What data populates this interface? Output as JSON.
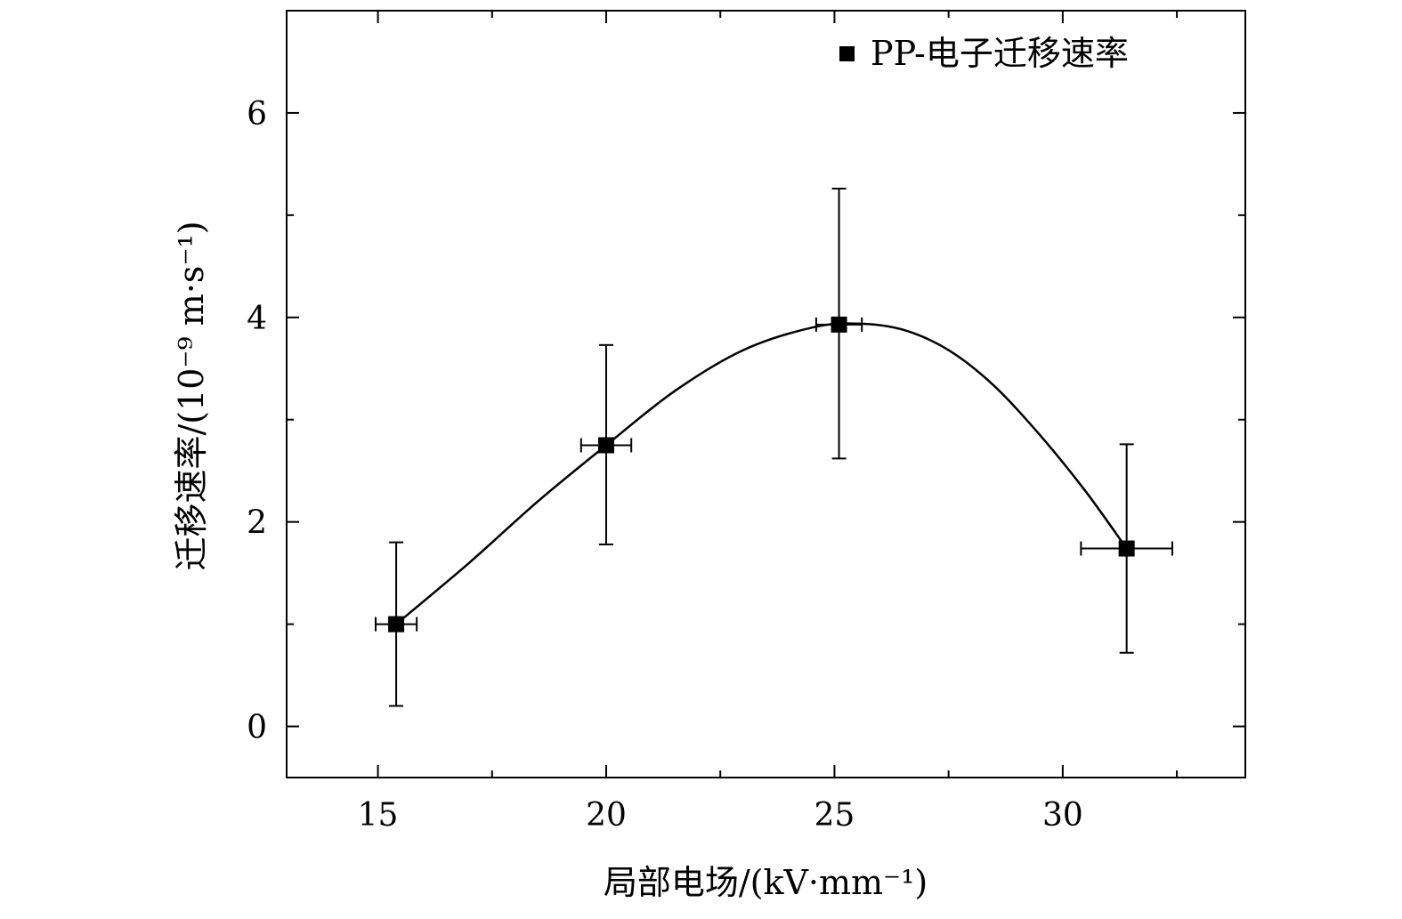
{
  "chart_data": {
    "type": "scatter",
    "title": "",
    "xlabel": "局部电场/(kV·mm⁻¹)",
    "ylabel": "迁移速率/(10⁻⁹ m·s⁻¹)",
    "xlim": [
      13,
      34
    ],
    "ylim": [
      -0.5,
      7
    ],
    "x_ticks": [
      15,
      20,
      25,
      30
    ],
    "x_tick_labels": [
      "15",
      "20",
      "25",
      "30"
    ],
    "y_ticks": [
      0,
      2,
      4,
      6
    ],
    "y_tick_labels": [
      "0",
      "2",
      "4",
      "6"
    ],
    "grid": false,
    "legend_position": "top-right",
    "series": [
      {
        "name": "PP-电子迁移速率",
        "marker": "square",
        "color": "#000000",
        "points": [
          {
            "x": 15.4,
            "y": 1.0,
            "xerr": 0.45,
            "yerr_low": 0.8,
            "yerr_high": 0.8
          },
          {
            "x": 20.0,
            "y": 2.75,
            "xerr": 0.55,
            "yerr_low": 0.97,
            "yerr_high": 0.98
          },
          {
            "x": 25.1,
            "y": 3.93,
            "xerr": 0.5,
            "yerr_low": 1.31,
            "yerr_high": 1.33
          },
          {
            "x": 31.4,
            "y": 1.74,
            "xerr": 1.0,
            "yerr_low": 1.02,
            "yerr_high": 1.02
          }
        ]
      }
    ],
    "fit_curve": {
      "color": "#000000",
      "x": [
        15.4,
        17.0,
        18.5,
        20.0,
        21.5,
        23.0,
        24.5,
        25.5,
        26.5,
        27.5,
        28.5,
        29.5,
        30.5,
        31.4
      ],
      "y": [
        1.0,
        1.6,
        2.2,
        2.75,
        3.28,
        3.68,
        3.9,
        3.94,
        3.88,
        3.68,
        3.33,
        2.85,
        2.3,
        1.74
      ]
    }
  }
}
